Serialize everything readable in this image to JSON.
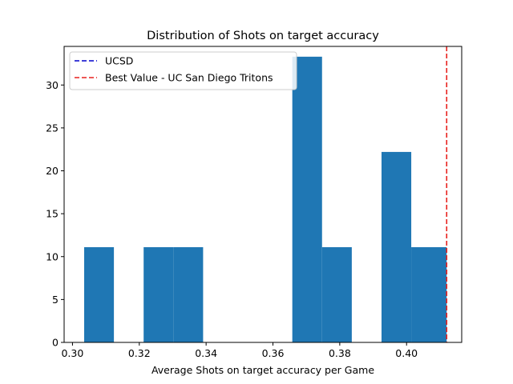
{
  "chart_data": {
    "type": "bar",
    "title": "Distribution of Shots on target accuracy",
    "xlabel": "Average Shots on target accuracy per Game",
    "ylabel": "",
    "xlim": [
      0.2975,
      0.4165
    ],
    "ylim": [
      0,
      34.5
    ],
    "xticks": [
      0.3,
      0.32,
      0.34,
      0.36,
      0.38,
      0.4
    ],
    "xtick_labels": [
      "0.30",
      "0.32",
      "0.34",
      "0.36",
      "0.38",
      "0.40"
    ],
    "yticks": [
      0,
      5,
      10,
      15,
      20,
      25,
      30
    ],
    "ytick_labels": [
      "0",
      "5",
      "10",
      "15",
      "20",
      "25",
      "30"
    ],
    "bar_color": "#1f77b4",
    "bins": [
      {
        "x0": 0.3035,
        "x1": 0.3124,
        "value": 11.1
      },
      {
        "x0": 0.3124,
        "x1": 0.3213,
        "value": 0
      },
      {
        "x0": 0.3213,
        "x1": 0.3302,
        "value": 11.1
      },
      {
        "x0": 0.3302,
        "x1": 0.3391,
        "value": 11.1
      },
      {
        "x0": 0.3391,
        "x1": 0.348,
        "value": 0
      },
      {
        "x0": 0.348,
        "x1": 0.3569,
        "value": 0
      },
      {
        "x0": 0.3569,
        "x1": 0.3658,
        "value": 0
      },
      {
        "x0": 0.3658,
        "x1": 0.3747,
        "value": 33.3
      },
      {
        "x0": 0.3747,
        "x1": 0.3836,
        "value": 11.1
      },
      {
        "x0": 0.3836,
        "x1": 0.3925,
        "value": 0
      },
      {
        "x0": 0.3925,
        "x1": 0.4014,
        "value": 22.2
      },
      {
        "x0": 0.4014,
        "x1": 0.412,
        "value": 11.1
      }
    ],
    "reference_lines": [
      {
        "name": "UCSD",
        "color": "#0000cc",
        "style": "dashed",
        "x": null
      },
      {
        "name": "Best Value - UC San Diego Tritons",
        "color": "#e8211d",
        "style": "dashed",
        "x": 0.412
      }
    ],
    "legend_position": "upper-left",
    "grid": false
  }
}
